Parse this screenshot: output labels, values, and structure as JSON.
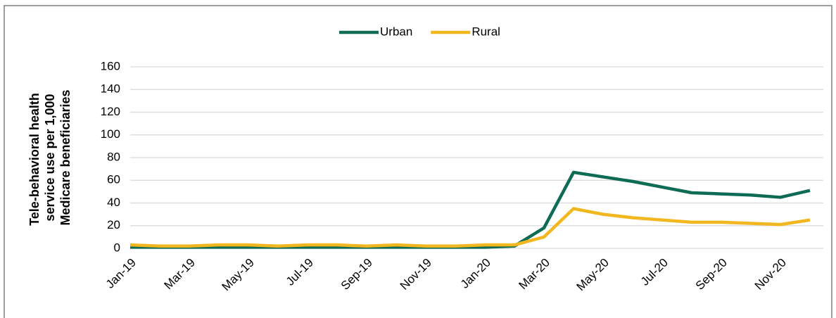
{
  "chart_data": {
    "type": "line",
    "y_label": "Tele-behavioral health service use per 1,000 Medicare beneficiaries",
    "categories": [
      "Jan-19",
      null,
      "Mar-19",
      null,
      "May-19",
      null,
      "Jul-19",
      null,
      "Sep-19",
      null,
      "Nov-19",
      null,
      "Jan-20",
      null,
      "Mar-20",
      null,
      "May-20",
      null,
      "Jul-20",
      null,
      "Sep-20",
      null,
      "Nov-20",
      null
    ],
    "series": [
      {
        "name": "Urban",
        "color": "#0e6b54",
        "values": [
          1,
          1,
          1,
          1,
          1,
          1,
          1,
          1,
          1,
          1,
          1,
          1,
          1,
          2,
          18,
          67,
          63,
          59,
          54,
          49,
          48,
          47,
          45,
          51
        ]
      },
      {
        "name": "Rural",
        "color": "#f2b61e",
        "values": [
          3,
          2,
          2,
          3,
          3,
          2,
          3,
          3,
          2,
          3,
          2,
          2,
          3,
          3,
          10,
          35,
          30,
          27,
          25,
          23,
          23,
          22,
          21,
          25
        ]
      }
    ],
    "ylim": [
      0,
      160
    ],
    "yticks": [
      0,
      20,
      40,
      60,
      80,
      100,
      120,
      140,
      160
    ],
    "grid": true,
    "legend": "top"
  }
}
